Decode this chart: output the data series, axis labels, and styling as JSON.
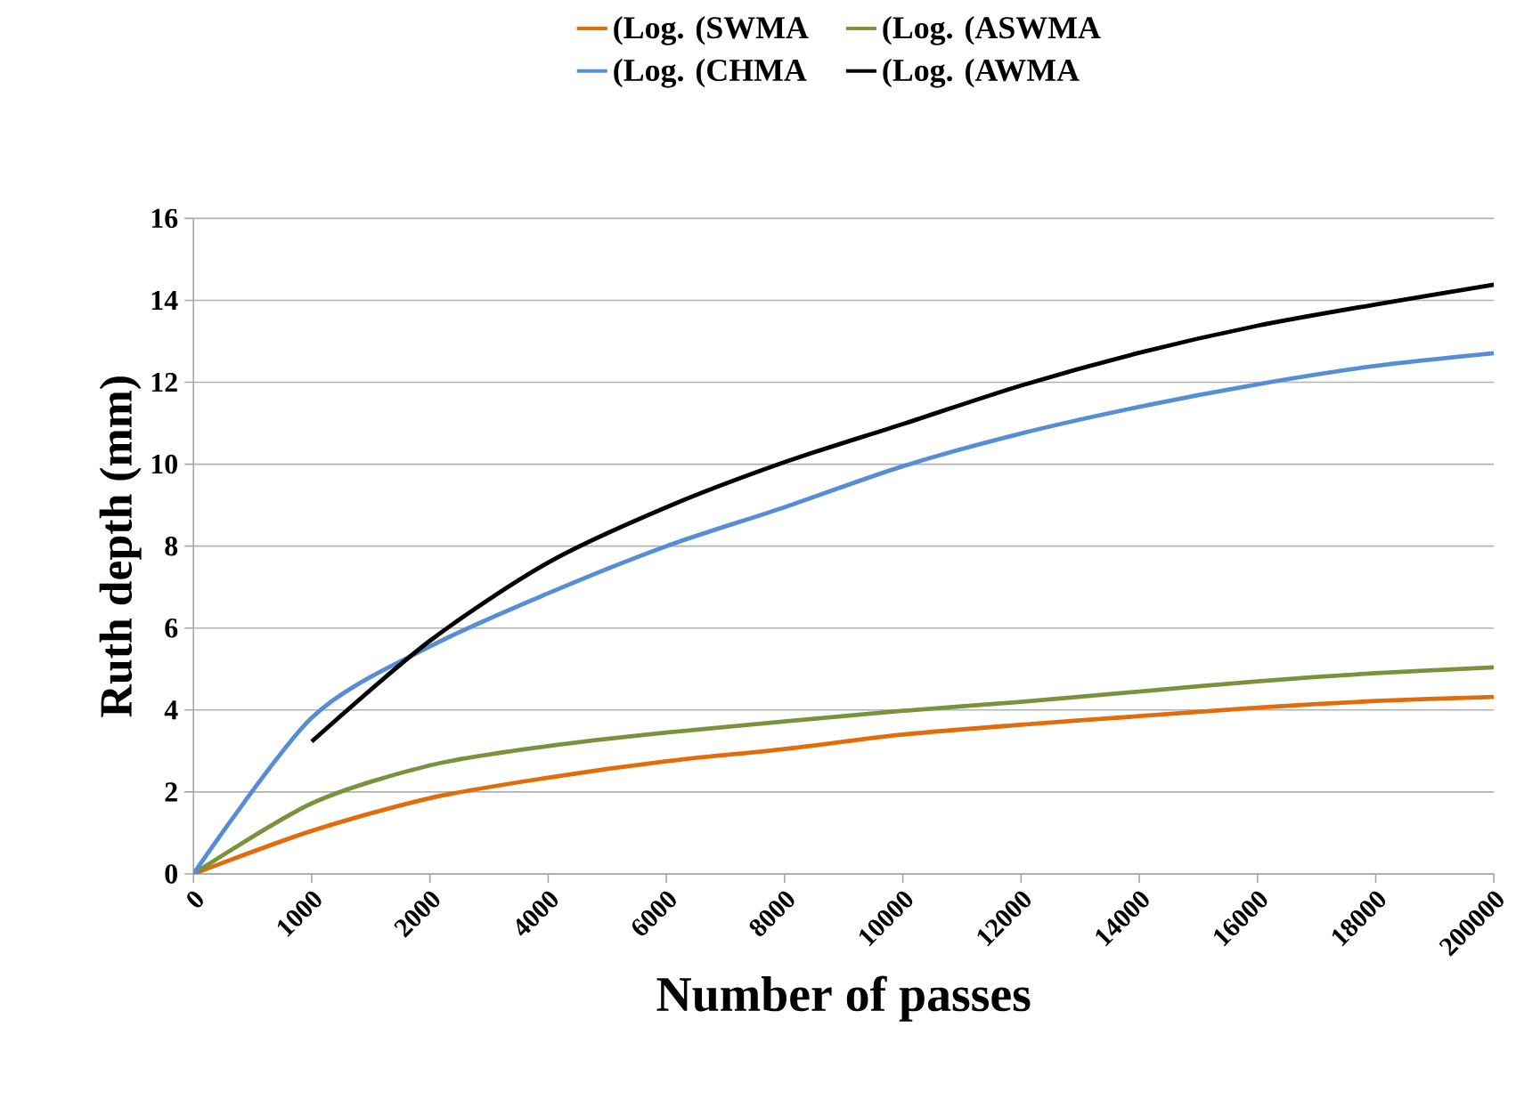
{
  "chart_data": {
    "type": "line",
    "xlabel": "Number of passes",
    "ylabel": "Ruth depth (mm)",
    "categories": [
      "0",
      "1000",
      "2000",
      "4000",
      "6000",
      "8000",
      "10000",
      "12000",
      "14000",
      "16000",
      "18000",
      "200000"
    ],
    "ylim": [
      0,
      16
    ],
    "yticks": [
      0,
      2,
      4,
      6,
      8,
      10,
      12,
      14,
      16
    ],
    "grid": "y",
    "legend": "top",
    "marker": "none",
    "line_style": "solid",
    "series": [
      {
        "name": "(Log. (SWMA",
        "color": "#e36c0a",
        "values": [
          0,
          1.05,
          1.85,
          2.35,
          2.75,
          3.05,
          3.4,
          3.64,
          3.85,
          4.06,
          4.22,
          4.32
        ]
      },
      {
        "name": "(Log. (ASWMA",
        "color": "#77933c",
        "values": [
          0,
          1.72,
          2.65,
          3.12,
          3.45,
          3.72,
          3.98,
          4.2,
          4.45,
          4.7,
          4.9,
          5.04
        ]
      },
      {
        "name": "(Log. (CHMA",
        "color": "#558ed5",
        "values": [
          0,
          3.81,
          5.55,
          6.85,
          8.0,
          8.95,
          9.95,
          10.75,
          11.4,
          11.95,
          12.4,
          12.71
        ]
      },
      {
        "name": "(Log. (AWMA",
        "color": "#000000",
        "values": [
          null,
          3.23,
          5.69,
          7.6,
          8.95,
          10.05,
          10.98,
          11.92,
          12.72,
          13.38,
          13.9,
          14.38
        ]
      }
    ]
  }
}
